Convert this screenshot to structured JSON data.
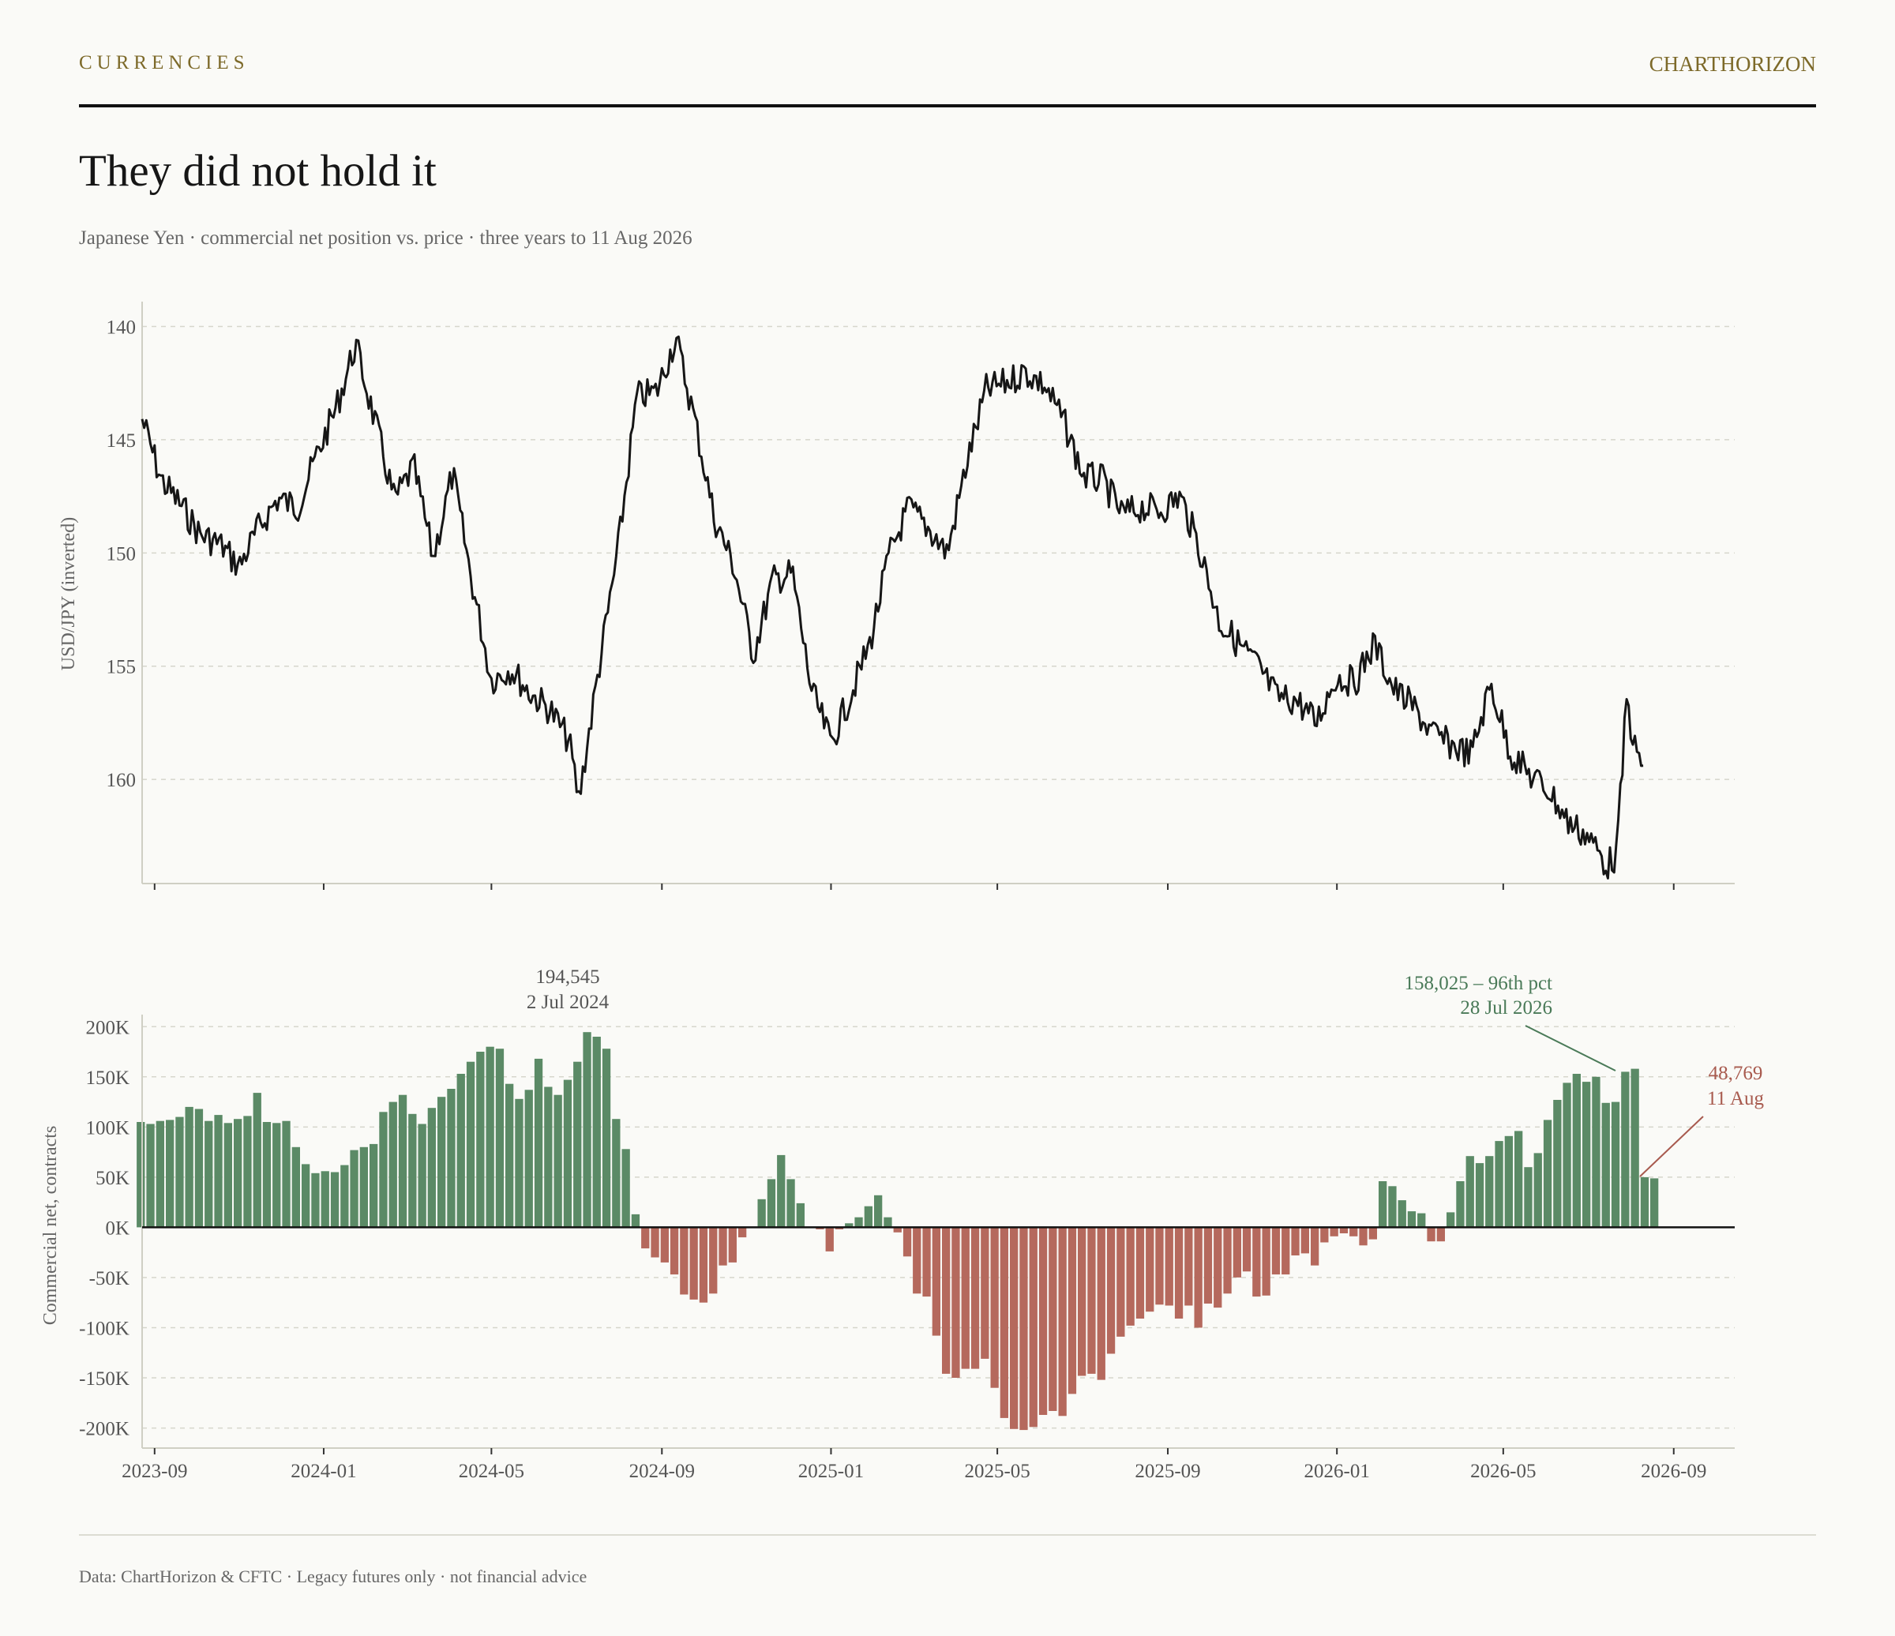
{
  "header": {
    "kicker": "CURRENCIES",
    "brand": "CHARTHORIZON"
  },
  "title": "They did not hold it",
  "subtitle": "Japanese Yen · commercial net position vs. price · three years to 11 Aug 2026",
  "footer": "Data: ChartHorizon & CFTC · Legacy futures only · not financial advice",
  "colors": {
    "price_line": "#161616",
    "positive_bar": "#5b8a66",
    "negative_bar": "#b5695d",
    "annotation_peak": "#4a7a58",
    "annotation_latest": "#a85a4e",
    "annotation_neutral": "#555555",
    "accent": "#7d6a2a"
  },
  "chart_data": [
    {
      "type": "line",
      "name": "price",
      "ylabel": "USD/JPY (inverted)",
      "inverted": true,
      "ylim": [
        138.9,
        164.6
      ],
      "xlim": [
        "2023-08-23",
        "2026-10-15"
      ],
      "yticks": [
        "140",
        "145",
        "150",
        "155",
        "160"
      ],
      "grid": true,
      "dates": [
        "2023-08-23",
        "2023-09-06",
        "2023-09-20",
        "2023-10-04",
        "2023-10-18",
        "2023-11-01",
        "2023-11-15",
        "2023-11-29",
        "2023-12-13",
        "2023-12-27",
        "2024-01-10",
        "2024-01-24",
        "2024-02-07",
        "2024-02-21",
        "2024-03-06",
        "2024-03-20",
        "2024-04-03",
        "2024-04-17",
        "2024-05-01",
        "2024-05-15",
        "2024-05-29",
        "2024-06-12",
        "2024-06-26",
        "2024-07-03",
        "2024-07-17",
        "2024-07-31",
        "2024-08-14",
        "2024-08-28",
        "2024-09-11",
        "2024-09-25",
        "2024-10-09",
        "2024-10-23",
        "2024-11-06",
        "2024-11-20",
        "2024-12-04",
        "2024-12-18",
        "2025-01-01",
        "2025-01-15",
        "2025-01-29",
        "2025-02-12",
        "2025-02-26",
        "2025-03-12",
        "2025-03-26",
        "2025-04-09",
        "2025-04-23",
        "2025-05-07",
        "2025-05-21",
        "2025-06-04",
        "2025-06-18",
        "2025-07-02",
        "2025-07-16",
        "2025-07-30",
        "2025-08-13",
        "2025-08-27",
        "2025-09-10",
        "2025-09-24",
        "2025-10-08",
        "2025-10-22",
        "2025-11-05",
        "2025-11-19",
        "2025-12-03",
        "2025-12-17",
        "2025-12-31",
        "2026-01-14",
        "2026-01-28",
        "2026-02-11",
        "2026-02-25",
        "2026-03-11",
        "2026-03-25",
        "2026-04-08",
        "2026-04-22",
        "2026-05-06",
        "2026-05-20",
        "2026-06-03",
        "2026-06-17",
        "2026-07-01",
        "2026-07-15",
        "2026-07-22",
        "2026-07-29",
        "2026-08-05",
        "2026-08-11"
      ],
      "values": [
        144.1,
        146.8,
        147.9,
        149.2,
        149.6,
        150.6,
        148.9,
        147.6,
        148.0,
        145.7,
        143.6,
        140.8,
        144.2,
        147.7,
        146.2,
        150.2,
        146.5,
        151.3,
        155.6,
        155.1,
        156.2,
        156.9,
        158.3,
        160.9,
        155.3,
        150.0,
        143.1,
        142.9,
        140.5,
        144.2,
        148.5,
        150.6,
        154.5,
        151.2,
        150.9,
        156.1,
        158.4,
        156.3,
        154.0,
        150.1,
        148.0,
        148.9,
        150.0,
        146.0,
        142.8,
        142.5,
        142.0,
        142.6,
        144.2,
        146.6,
        146.8,
        148.3,
        148.0,
        148.1,
        147.5,
        149.8,
        153.0,
        154.0,
        155.0,
        156.4,
        156.5,
        157.5,
        155.5,
        155.7,
        154.0,
        156.0,
        156.8,
        158.0,
        158.5,
        158.9,
        155.8,
        158.8,
        159.8,
        160.5,
        161.9,
        162.5,
        163.8,
        163.3,
        156.5,
        159.0,
        159.4
      ]
    },
    {
      "type": "bar",
      "name": "commercial_net",
      "ylabel": "Commercial net, contracts",
      "ylim": [
        -220000,
        212000
      ],
      "xlim": [
        "2023-08-23",
        "2026-10-15"
      ],
      "yticks": [
        "200K",
        "150K",
        "100K",
        "50K",
        "0K",
        "-50K",
        "-100K",
        "-150K",
        "-200K"
      ],
      "xticks": [
        "2023-09",
        "2024-01",
        "2024-05",
        "2024-09",
        "2025-01",
        "2025-05",
        "2025-09",
        "2026-01",
        "2026-05",
        "2026-09"
      ],
      "grid": true,
      "start_date": "2023-08-22",
      "interval": "weekly",
      "values": [
        105000,
        103000,
        106000,
        107000,
        110000,
        120000,
        118000,
        106000,
        112000,
        104000,
        108000,
        111000,
        134000,
        105000,
        104000,
        106000,
        80000,
        63000,
        54000,
        56000,
        55000,
        62000,
        77000,
        80000,
        83000,
        115000,
        125000,
        132000,
        113000,
        103000,
        119000,
        130000,
        138000,
        153000,
        165000,
        175000,
        180000,
        178000,
        143000,
        128000,
        137000,
        168000,
        140000,
        132000,
        147000,
        165000,
        194545,
        190000,
        178000,
        108000,
        78000,
        13000,
        -21000,
        -30000,
        -35000,
        -47000,
        -67000,
        -72000,
        -75000,
        -66000,
        -38000,
        -35000,
        -10000,
        0,
        28000,
        48000,
        72000,
        48000,
        24000,
        0,
        -2000,
        -24000,
        -2000,
        4000,
        10000,
        21000,
        32000,
        10000,
        -5000,
        -29000,
        -66000,
        -69000,
        -108000,
        -146000,
        -150000,
        -141000,
        -141000,
        -131000,
        -160000,
        -190000,
        -201000,
        -202000,
        -199000,
        -187000,
        -183000,
        -188000,
        -166000,
        -148000,
        -146000,
        -152000,
        -126000,
        -109000,
        -98000,
        -91000,
        -84000,
        -77000,
        -78000,
        -91000,
        -78000,
        -100000,
        -76000,
        -80000,
        -66000,
        -50000,
        -44000,
        -69000,
        -68000,
        -47000,
        -47000,
        -28000,
        -26000,
        -38000,
        -15000,
        -9000,
        -6000,
        -9000,
        -18000,
        -12000,
        46000,
        41000,
        27000,
        16000,
        14000,
        -14000,
        -14000,
        15000,
        46000,
        71000,
        64000,
        71000,
        86000,
        91000,
        96000,
        60000,
        74000,
        107000,
        127000,
        144000,
        153000,
        145000,
        150000,
        124000,
        125000,
        155000,
        158025,
        50000,
        48769
      ]
    }
  ],
  "annotations": {
    "peak_value": "194,545",
    "peak_date": "2 Jul 2024",
    "high_value": "158,025 – 96th pct",
    "high_date": "28 Jul 2026",
    "latest_value": "48,769",
    "latest_date": "11 Aug"
  }
}
